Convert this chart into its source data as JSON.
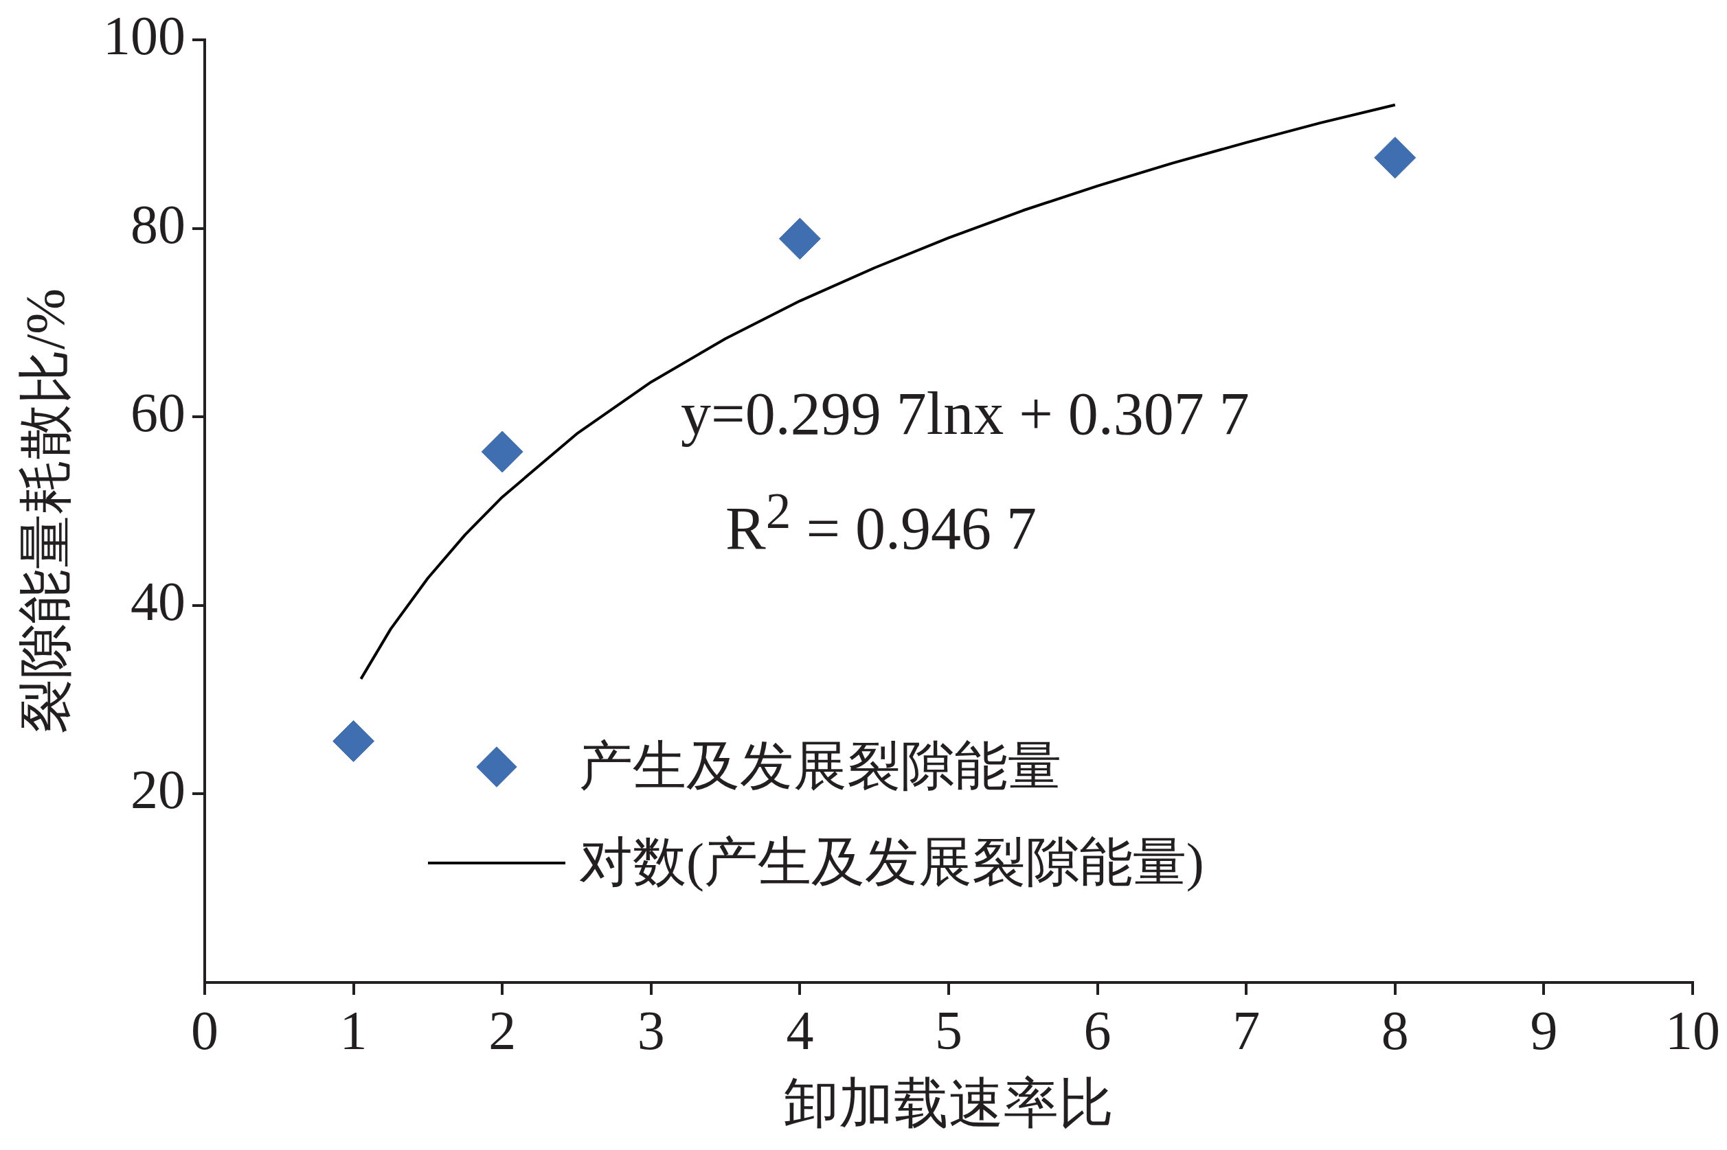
{
  "chart_data": {
    "type": "scatter",
    "xlabel": "卸加载速率比",
    "ylabel": "裂隙能量耗散比/%",
    "xlim": [
      0,
      10
    ],
    "xticks": [
      0,
      1,
      2,
      3,
      4,
      5,
      6,
      7,
      8,
      9,
      10
    ],
    "ylim": [
      0,
      100
    ],
    "yticks": [
      20,
      40,
      60,
      80,
      100
    ],
    "grid": false,
    "legend": "bottom",
    "marker": "diamond",
    "annotations": [
      "y=0.299 7lnx + 0.307 7",
      "R$^{2}$ = 0.946 7"
    ],
    "series": [
      {
        "name": "产生及发展裂隙能量",
        "color": "#3f6fb0",
        "x": [
          1,
          2,
          4,
          8
        ],
        "values": [
          25.6,
          56.3,
          78.9,
          87.5
        ]
      },
      {
        "name": "对数(产生及发展裂隙能量)",
        "type": "line",
        "marker": "none",
        "color": "#000000",
        "x": [
          1.05,
          1.25,
          1.5,
          1.75,
          2,
          2.5,
          3,
          3.5,
          4,
          4.5,
          5,
          5.5,
          6,
          6.5,
          7,
          7.5,
          8
        ],
        "values": [
          32.2,
          37.5,
          42.9,
          47.5,
          51.5,
          58.2,
          63.7,
          68.3,
          72.3,
          75.8,
          79.0,
          81.9,
          84.5,
          86.9,
          89.1,
          91.2,
          93.1
        ]
      }
    ]
  }
}
